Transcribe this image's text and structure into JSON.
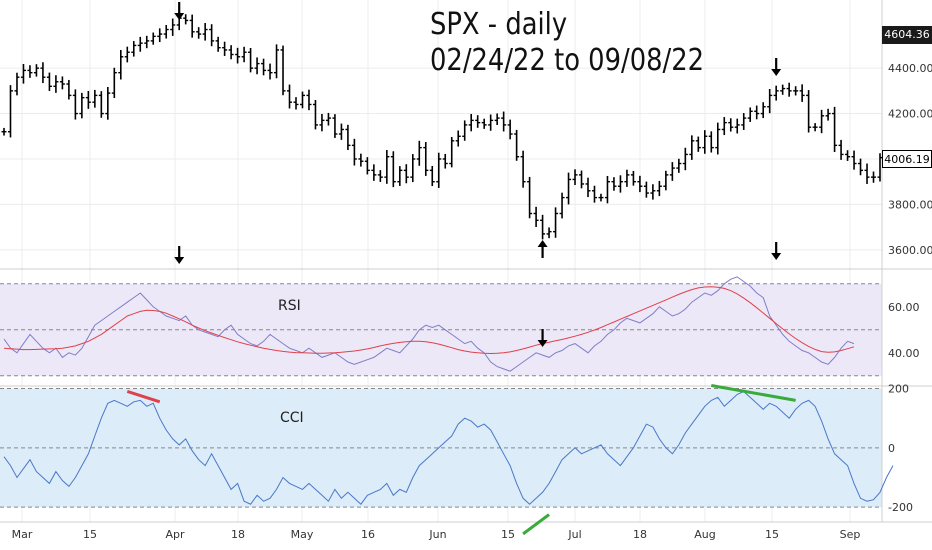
{
  "title": {
    "line1": "SPX - daily",
    "line2": "02/24/22 to 09/08/22"
  },
  "colors": {
    "price": "#000000",
    "rsi_line": "#7e7ec8",
    "rsi_ma": "#e0404a",
    "rsi_band": "#ede8f7",
    "cci_line": "#4a78c8",
    "cci_band": "#dcecf8",
    "grid": "#ececec",
    "annotation_red": "#e0404a",
    "annotation_green": "#3aaa3a",
    "arrow": "#000000"
  },
  "price_axis": {
    "ticks": [
      "4400.00",
      "4200.00",
      "4000.00",
      "3800.00",
      "3600.00"
    ],
    "last_high_tag": "4604.36",
    "last_price_tag": "4006.19"
  },
  "rsi_axis": {
    "ticks": [
      "60.00",
      "40.00"
    ],
    "label": "RSI"
  },
  "cci_axis": {
    "ticks": [
      "200",
      "0",
      "-200"
    ],
    "label": "CCI"
  },
  "x_axis": {
    "ticks": [
      "Mar",
      "15",
      "Apr",
      "18",
      "May",
      "16",
      "Jun",
      "15",
      "Jul",
      "18",
      "Aug",
      "15",
      "Sep"
    ]
  },
  "chart_data": [
    {
      "type": "ohlc",
      "title": "SPX - daily 02/24/22 to 09/08/22",
      "ylim": [
        3520,
        4700
      ],
      "series": [
        {
          "name": "SPX",
          "values": [
            4120,
            4300,
            4360,
            4390,
            4380,
            4400,
            4360,
            4320,
            4340,
            4330,
            4280,
            4200,
            4270,
            4250,
            4280,
            4200,
            4290,
            4380,
            4450,
            4470,
            4500,
            4510,
            4520,
            4540,
            4550,
            4570,
            4590,
            4620,
            4610,
            4560,
            4550,
            4570,
            4520,
            4490,
            4480,
            4460,
            4450,
            4470,
            4400,
            4420,
            4390,
            4380,
            4480,
            4300,
            4250,
            4240,
            4280,
            4240,
            4150,
            4170,
            4180,
            4110,
            4130,
            4060,
            4000,
            3990,
            3950,
            3930,
            3920,
            4010,
            3900,
            3950,
            3920,
            4000,
            4050,
            3950,
            3900,
            4000,
            3980,
            4080,
            4100,
            4150,
            4170,
            4160,
            4150,
            4170,
            4180,
            4150,
            4110,
            4010,
            3900,
            3760,
            3730,
            3670,
            3680,
            3760,
            3830,
            3910,
            3930,
            3890,
            3860,
            3830,
            3830,
            3900,
            3880,
            3900,
            3930,
            3900,
            3880,
            3850,
            3860,
            3880,
            3930,
            3960,
            3980,
            4020,
            4080,
            4050,
            4100,
            4050,
            4130,
            4160,
            4140,
            4150,
            4180,
            4210,
            4200,
            4230,
            4280,
            4300,
            4310,
            4300,
            4300,
            4280,
            4140,
            4140,
            4190,
            4200,
            4060,
            4020,
            4010,
            3980,
            3950,
            3920,
            3920,
            4006
          ]
        }
      ]
    },
    {
      "type": "line",
      "ylim": [
        26,
        76
      ],
      "series": [
        {
          "name": "RSI",
          "values": [
            46,
            42,
            40,
            44,
            48,
            45,
            42,
            40,
            42,
            38,
            40,
            39,
            42,
            47,
            52,
            54,
            56,
            58,
            60,
            62,
            64,
            66,
            63,
            60,
            58,
            56,
            55,
            54,
            56,
            52,
            50,
            49,
            48,
            47,
            50,
            52,
            48,
            46,
            44,
            43,
            45,
            48,
            46,
            44,
            42,
            41,
            40,
            42,
            40,
            38,
            39,
            40,
            38,
            36,
            35,
            36,
            37,
            38,
            40,
            42,
            41,
            40,
            43,
            46,
            50,
            52,
            51,
            52,
            50,
            48,
            46,
            44,
            45,
            42,
            40,
            36,
            34,
            33,
            32,
            34,
            36,
            38,
            40,
            39,
            38,
            40,
            41,
            43,
            44,
            42,
            40,
            43,
            45,
            48,
            50,
            53,
            55,
            54,
            53,
            55,
            57,
            60,
            58,
            56,
            57,
            59,
            62,
            64,
            66,
            65,
            67,
            70,
            72,
            73,
            71,
            69,
            66,
            64,
            56,
            52,
            48,
            45,
            43,
            41,
            40,
            38,
            36,
            35,
            38,
            42,
            45,
            44
          ]
        },
        {
          "name": "RSI MA",
          "values": [
            42,
            41.8,
            41.6,
            41.4,
            41.4,
            41.5,
            41.6,
            41.7,
            41.8,
            42,
            42.5,
            43,
            44,
            45,
            46.5,
            48,
            50,
            52,
            54,
            56,
            57,
            58,
            58.5,
            58.4,
            58,
            57.2,
            56,
            54.8,
            53.5,
            52,
            50.8,
            49.6,
            48.6,
            47.6,
            46.6,
            45.7,
            44.8,
            44,
            43.3,
            42.6,
            42,
            41.5,
            41,
            40.6,
            40.3,
            40.1,
            40,
            39.9,
            39.8,
            39.8,
            39.9,
            40,
            40.2,
            40.5,
            40.8,
            41.2,
            41.7,
            42.3,
            43,
            43.6,
            44.1,
            44.5,
            44.8,
            45,
            45,
            44.8,
            44.4,
            43.8,
            43,
            42.2,
            41.4,
            40.8,
            40.3,
            40,
            39.8,
            39.7,
            39.8,
            40,
            40.4,
            41,
            41.7,
            42.5,
            43.3,
            44,
            44.6,
            45.2,
            45.8,
            46.5,
            47.2,
            48,
            48.9,
            49.9,
            51,
            52.2,
            53.4,
            54.6,
            55.8,
            57,
            58.2,
            59.4,
            60.6,
            61.8,
            63,
            64.2,
            65.4,
            66.5,
            67.5,
            68.2,
            68.6,
            68.7,
            68.5,
            68,
            67,
            65.6,
            63.8,
            61.8,
            59.6,
            57.3,
            55,
            52.7,
            50.4,
            48.2,
            46.2,
            44.4,
            42.8,
            41.5,
            40.5,
            40.2,
            40.4,
            41,
            41.8,
            42.6
          ]
        }
      ]
    },
    {
      "type": "line",
      "ylim": [
        -250,
        205
      ],
      "series": [
        {
          "name": "CCI",
          "values": [
            -30,
            -60,
            -100,
            -70,
            -40,
            -80,
            -100,
            -120,
            -80,
            -110,
            -130,
            -100,
            -60,
            -20,
            40,
            100,
            150,
            160,
            150,
            140,
            155,
            160,
            140,
            150,
            100,
            60,
            30,
            10,
            30,
            -10,
            -40,
            -60,
            -20,
            -60,
            -100,
            -140,
            -120,
            -180,
            -190,
            -160,
            -180,
            -170,
            -140,
            -100,
            -120,
            -130,
            -140,
            -120,
            -140,
            -160,
            -180,
            -140,
            -170,
            -150,
            -170,
            -190,
            -160,
            -150,
            -140,
            -120,
            -160,
            -140,
            -150,
            -100,
            -60,
            -40,
            -20,
            0,
            20,
            40,
            80,
            100,
            90,
            70,
            80,
            60,
            20,
            -20,
            -60,
            -120,
            -170,
            -190,
            -170,
            -150,
            -120,
            -80,
            -40,
            -20,
            0,
            -20,
            -10,
            0,
            10,
            -20,
            -40,
            -60,
            -30,
            0,
            40,
            80,
            70,
            30,
            0,
            -20,
            10,
            50,
            80,
            110,
            140,
            160,
            170,
            140,
            160,
            180,
            190,
            170,
            150,
            130,
            150,
            140,
            120,
            100,
            130,
            150,
            160,
            140,
            90,
            30,
            -20,
            -40,
            -60,
            -120,
            -170,
            -180,
            -175,
            -150,
            -100,
            -60
          ]
        }
      ]
    }
  ],
  "annotations": {
    "price_arrows": [
      {
        "index": 27,
        "dir": "down"
      },
      {
        "index": 83,
        "dir": "up"
      },
      {
        "index": 119,
        "dir": "down"
      }
    ],
    "rsi_arrows": [
      {
        "index": 27,
        "dir": "down"
      },
      {
        "index": 83,
        "dir": "down"
      },
      {
        "index": 119,
        "dir": "down"
      }
    ],
    "cci_trendlines": [
      {
        "from": [
          19,
          190
        ],
        "to": [
          24,
          155
        ],
        "color": "red"
      },
      {
        "from": [
          80,
          -290
        ],
        "to": [
          84,
          -225
        ],
        "color": "green"
      },
      {
        "from": [
          109,
          210
        ],
        "to": [
          122,
          160
        ],
        "color": "green"
      }
    ]
  }
}
